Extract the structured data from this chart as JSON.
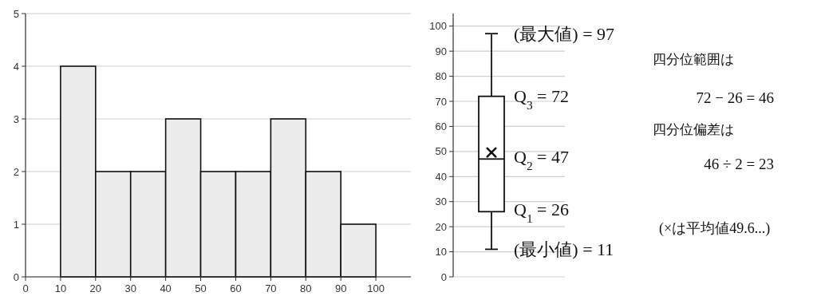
{
  "chart_data": [
    {
      "type": "histogram",
      "bins": [
        10,
        20,
        30,
        40,
        50,
        60,
        70,
        80,
        90,
        100
      ],
      "values": [
        4,
        2,
        2,
        3,
        2,
        2,
        3,
        2,
        1
      ],
      "color": "#ececec",
      "xlim": [
        0,
        110
      ],
      "xticks": [
        0,
        10,
        20,
        30,
        40,
        50,
        60,
        70,
        80,
        90,
        100
      ],
      "ylim": [
        0,
        5
      ],
      "yticks": [
        0,
        1,
        2,
        3,
        4,
        5
      ],
      "grid": "y"
    },
    {
      "type": "box",
      "categories": [
        null
      ],
      "boxes": [
        {
          "low": 11,
          "q1": 26,
          "median": 47,
          "q3": 72,
          "high": 97,
          "mean": 49.6
        }
      ],
      "color": "#ffffff",
      "ylim": [
        0,
        105
      ],
      "yticks": [
        0,
        10,
        20,
        30,
        40,
        50,
        60,
        70,
        80,
        90,
        100
      ],
      "grid": "y",
      "annotations": [
        "(最大値) = 97",
        "Q$_{3}$ = 72",
        "Q$_{2}$ = 47",
        "Q$_{1}$ = 26",
        "(最小値) = 11",
        "四分位範囲は",
        "72 − 26 = 46",
        "四分位偏差は",
        "46 ÷ 2 = 23",
        "(×は平均値49.6...)"
      ]
    }
  ]
}
